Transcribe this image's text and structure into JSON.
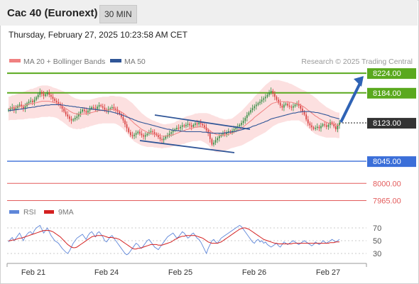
{
  "header": {
    "title": "Cac 40 (Euronext)",
    "interval": "30 MIN",
    "datetime": "Thursday, February 27, 2025 10:23:58 AM CET"
  },
  "legend": {
    "ma20_label": "MA 20 + Bollinger Bands",
    "ma50_label": "MA 50",
    "credit": "Research © 2025 Trading Central",
    "rsi_label": "RSI",
    "ma9_label": "9MA"
  },
  "colors": {
    "candle_up": "#2e8b3d",
    "candle_down": "#d63a3a",
    "bollinger_fill": "#fbdada",
    "ma20": "#f08080",
    "ma50": "#2f5597",
    "resistance": "#5aa91e",
    "support": "#3b6fd9",
    "target_red": "#e35c5c",
    "current": "#333333",
    "arrow": "#2f63b5",
    "rsi": "#5f87d9",
    "rsi_ma": "#d42020"
  },
  "chart_data": [
    {
      "type": "candlestick",
      "x_tick_labels": [
        "Feb 21",
        "Feb 24",
        "Feb 25",
        "Feb 26",
        "Feb 27"
      ],
      "ylim": [
        7960,
        8240
      ],
      "levels": [
        {
          "value": 8224.0,
          "label": "8224.00",
          "kind": "resistance"
        },
        {
          "value": 8184.0,
          "label": "8184.00",
          "kind": "resistance"
        },
        {
          "value": 8123.0,
          "label": "8123.00",
          "kind": "current"
        },
        {
          "value": 8045.0,
          "label": "8045.00",
          "kind": "support"
        },
        {
          "value": 8000.0,
          "label": "8000.00",
          "kind": "target"
        },
        {
          "value": 7965.0,
          "label": "7965.00",
          "kind": "target"
        }
      ],
      "close": [
        8150,
        8152,
        8155,
        8149,
        8153,
        8158,
        8160,
        8156,
        8152,
        8157,
        8163,
        8166,
        8168,
        8165,
        8170,
        8175,
        8180,
        8186,
        8182,
        8178,
        8181,
        8184,
        8180,
        8176,
        8172,
        8168,
        8165,
        8162,
        8158,
        8152,
        8146,
        8140,
        8136,
        8131,
        8128,
        8130,
        8133,
        8136,
        8142,
        8146,
        8150,
        8147,
        8144,
        8148,
        8152,
        8155,
        8153,
        8151,
        8156,
        8159,
        8157,
        8154,
        8150,
        8148,
        8151,
        8153,
        8155,
        8152,
        8150,
        8146,
        8141,
        8135,
        8128,
        8120,
        8112,
        8104,
        8098,
        8096,
        8099,
        8102,
        8105,
        8101,
        8098,
        8095,
        8098,
        8101,
        8104,
        8106,
        8104,
        8101,
        8098,
        8094,
        8090,
        8088,
        8091,
        8095,
        8098,
        8101,
        8104,
        8107,
        8110,
        8113,
        8112,
        8115,
        8118,
        8116,
        8119,
        8121,
        8118,
        8115,
        8119,
        8122,
        8120,
        8124,
        8121,
        8118,
        8114,
        8108,
        8102,
        8090,
        8079,
        8083,
        8088,
        8092,
        8096,
        8099,
        8102,
        8100,
        8104,
        8106,
        8103,
        8107,
        8110,
        8113,
        8116,
        8119,
        8123,
        8127,
        8133,
        8139,
        8144,
        8149,
        8153,
        8157,
        8160,
        8163,
        8166,
        8170,
        8173,
        8176,
        8180,
        8185,
        8188,
        8182,
        8176,
        8170,
        8164,
        8158,
        8154,
        8160,
        8162,
        8158,
        8156,
        8154,
        8157,
        8160,
        8162,
        8158,
        8152,
        8146,
        8140,
        8130,
        8122,
        8118,
        8114,
        8111,
        8113,
        8115,
        8112,
        8117,
        8120,
        8118,
        8115,
        8119,
        8124,
        8121,
        8116,
        8110,
        8118,
        8123
      ],
      "ma20": [
        8152,
        8153,
        8154,
        8154,
        8155,
        8156,
        8157,
        8157,
        8158,
        8159,
        8160,
        8161,
        8162,
        8162,
        8163,
        8164,
        8165,
        8166,
        8167,
        8167,
        8167,
        8167,
        8167,
        8166,
        8165,
        8164,
        8163,
        8161,
        8159,
        8157,
        8155,
        8152,
        8150,
        8147,
        8145,
        8143,
        8142,
        8141,
        8141,
        8140,
        8141,
        8141,
        8142,
        8142,
        8143,
        8144,
        8145,
        8146,
        8147,
        8148,
        8148,
        8149,
        8149,
        8149,
        8149,
        8150,
        8150,
        8150,
        8149,
        8148,
        8147,
        8145,
        8143,
        8140,
        8137,
        8133,
        8129,
        8126,
        8122,
        8119,
        8116,
        8113,
        8110,
        8108,
        8106,
        8104,
        8103,
        8102,
        8101,
        8100,
        8099,
        8098,
        8097,
        8096,
        8096,
        8096,
        8097,
        8097,
        8098,
        8099,
        8100,
        8102,
        8103,
        8105,
        8106,
        8107,
        8109,
        8110,
        8111,
        8112,
        8113,
        8114,
        8114,
        8115,
        8115,
        8114,
        8113,
        8112,
        8110,
        8107,
        8104,
        8102,
        8100,
        8099,
        8098,
        8098,
        8098,
        8098,
        8099,
        8100,
        8101,
        8102,
        8104,
        8106,
        8108,
        8110,
        8112,
        8115,
        8118,
        8121,
        8124,
        8127,
        8130,
        8134,
        8137,
        8140,
        8143,
        8146,
        8149,
        8152,
        8155,
        8158,
        8161,
        8163,
        8164,
        8165,
        8166,
        8166,
        8166,
        8166,
        8166,
        8166,
        8165,
        8165,
        8164,
        8163,
        8162,
        8161,
        8159,
        8157,
        8155,
        8152,
        8149,
        8146,
        8143,
        8140,
        8137,
        8135,
        8132,
        8130,
        8128,
        8126,
        8124,
        8123,
        8122,
        8121,
        8120,
        8119,
        8118,
        8118
      ],
      "ma50": [
        8148,
        8148,
        8149,
        8149,
        8150,
        8150,
        8151,
        8151,
        8152,
        8152,
        8153,
        8154,
        8154,
        8155,
        8155,
        8156,
        8157,
        8157,
        8158,
        8158,
        8159,
        8159,
        8159,
        8160,
        8160,
        8160,
        8160,
        8160,
        8160,
        8159,
        8159,
        8158,
        8158,
        8157,
        8157,
        8156,
        8156,
        8155,
        8155,
        8154,
        8154,
        8153,
        8153,
        8152,
        8152,
        8151,
        8151,
        8150,
        8150,
        8149,
        8149,
        8148,
        8148,
        8147,
        8146,
        8146,
        8145,
        8144,
        8143,
        8142,
        8141,
        8140,
        8138,
        8137,
        8135,
        8134,
        8132,
        8131,
        8129,
        8128,
        8126,
        8125,
        8124,
        8123,
        8122,
        8121,
        8120,
        8119,
        8118,
        8117,
        8116,
        8115,
        8114,
        8113,
        8112,
        8111,
        8110,
        8110,
        8109,
        8108,
        8108,
        8107,
        8107,
        8106,
        8106,
        8106,
        8105,
        8105,
        8105,
        8105,
        8105,
        8105,
        8105,
        8105,
        8105,
        8104,
        8104,
        8104,
        8103,
        8103,
        8102,
        8102,
        8102,
        8102,
        8102,
        8102,
        8102,
        8103,
        8103,
        8104,
        8104,
        8105,
        8105,
        8106,
        8107,
        8108,
        8109,
        8110,
        8111,
        8112,
        8113,
        8114,
        8116,
        8117,
        8118,
        8120,
        8121,
        8123,
        8124,
        8126,
        8127,
        8129,
        8131,
        8132,
        8133,
        8134,
        8135,
        8136,
        8137,
        8138,
        8139,
        8140,
        8141,
        8142,
        8143,
        8143,
        8144,
        8145,
        8145,
        8146,
        8146,
        8146,
        8146,
        8146,
        8145,
        8145,
        8144,
        8144,
        8143,
        8142,
        8141,
        8140,
        8139,
        8138,
        8136,
        8135,
        8134,
        8133,
        8132,
        8131
      ],
      "bollinger_width": [
        24,
        24,
        25,
        25,
        26,
        26,
        27,
        27,
        28,
        28,
        29,
        29,
        30,
        30,
        31,
        31,
        32,
        32,
        32,
        32,
        32,
        32,
        31,
        31,
        30,
        30,
        30,
        30,
        31,
        31,
        32,
        32,
        33,
        33,
        32,
        32,
        31,
        31,
        30,
        30,
        29,
        29,
        28,
        28,
        27,
        27,
        27,
        27,
        27,
        27,
        27,
        27,
        27,
        27,
        27,
        28,
        28,
        28,
        28,
        29,
        30,
        31,
        32,
        34,
        35,
        36,
        37,
        37,
        37,
        36,
        35,
        34,
        33,
        32,
        31,
        30,
        29,
        28,
        27,
        27,
        26,
        26,
        25,
        25,
        24,
        24,
        24,
        24,
        24,
        24,
        24,
        25,
        25,
        26,
        26,
        27,
        27,
        27,
        27,
        27,
        27,
        28,
        28,
        28,
        28,
        29,
        30,
        31,
        32,
        34,
        35,
        36,
        36,
        36,
        35,
        34,
        33,
        32,
        31,
        31,
        30,
        30,
        31,
        32,
        33,
        34,
        35,
        36,
        37,
        38,
        39,
        40,
        41,
        42,
        43,
        44,
        45,
        46,
        47,
        48,
        48,
        48,
        48,
        47,
        46,
        45,
        44,
        43,
        42,
        41,
        40,
        39,
        38,
        37,
        36,
        35,
        34,
        33,
        33,
        33,
        34,
        35,
        36,
        36,
        37,
        37,
        37,
        36,
        35,
        34,
        33,
        32,
        31,
        30,
        29,
        28,
        27,
        26,
        26,
        26
      ],
      "rsi": {
        "label": "RSI",
        "ma_label": "9MA",
        "y_ticks": [
          70,
          50,
          30
        ],
        "ylim": [
          20,
          80
        ],
        "values": [
          48,
          52,
          55,
          50,
          54,
          58,
          62,
          56,
          50,
          56,
          60,
          63,
          64,
          60,
          66,
          70,
          72,
          74,
          68,
          62,
          66,
          70,
          64,
          58,
          54,
          50,
          48,
          46,
          42,
          38,
          35,
          32,
          30,
          34,
          40,
          46,
          50,
          54,
          56,
          58,
          60,
          56,
          52,
          58,
          62,
          64,
          60,
          56,
          62,
          64,
          60,
          56,
          50,
          48,
          52,
          56,
          58,
          54,
          50,
          46,
          42,
          38,
          34,
          30,
          28,
          30,
          34,
          38,
          42,
          46,
          44,
          40,
          38,
          42,
          46,
          50,
          52,
          48,
          44,
          40,
          38,
          36,
          40,
          44,
          48,
          52,
          56,
          58,
          60,
          62,
          58,
          54,
          56,
          60,
          64,
          62,
          58,
          54,
          56,
          60,
          62,
          58,
          54,
          52,
          48,
          42,
          36,
          30,
          38,
          44,
          50,
          52,
          48,
          46,
          50,
          54,
          56,
          58,
          60,
          62,
          64,
          66,
          68,
          70,
          72,
          74,
          72,
          68,
          64,
          60,
          56,
          52,
          48,
          46,
          50,
          52,
          48,
          50,
          46,
          48,
          44,
          42,
          40,
          42,
          44,
          46,
          42,
          40,
          44,
          48,
          46,
          44,
          46,
          48,
          50,
          48,
          46,
          44,
          46,
          48,
          50,
          48,
          46,
          44,
          42,
          44,
          48,
          46,
          44,
          46,
          50,
          48,
          46,
          48,
          50,
          52,
          50,
          48,
          50,
          52
        ],
        "ma9": [
          50,
          50,
          51,
          51,
          52,
          53,
          54,
          54,
          55,
          56,
          57,
          58,
          59,
          60,
          61,
          62,
          63,
          64,
          65,
          66,
          66,
          66,
          66,
          65,
          64,
          62,
          60,
          58,
          56,
          53,
          50,
          47,
          44,
          42,
          40,
          39,
          39,
          40,
          42,
          44,
          46,
          48,
          50,
          52,
          54,
          56,
          57,
          57,
          58,
          58,
          58,
          58,
          57,
          56,
          55,
          55,
          55,
          54,
          54,
          53,
          52,
          50,
          48,
          46,
          44,
          42,
          40,
          38,
          37,
          37,
          38,
          38,
          39,
          40,
          41,
          42,
          43,
          44,
          44,
          44,
          44,
          43,
          43,
          43,
          44,
          45,
          46,
          47,
          48,
          50,
          52,
          53,
          55,
          56,
          57,
          57,
          58,
          58,
          58,
          58,
          58,
          58,
          57,
          56,
          55,
          54,
          52,
          50,
          48,
          47,
          46,
          46,
          46,
          46,
          47,
          48,
          50,
          52,
          54,
          56,
          58,
          60,
          62,
          64,
          66,
          68,
          69,
          70,
          70,
          69,
          68,
          66,
          64,
          62,
          60,
          58,
          56,
          54,
          52,
          51,
          50,
          49,
          48,
          47,
          46,
          46,
          45,
          45,
          45,
          45,
          45,
          45,
          45,
          45,
          46,
          46,
          46,
          46,
          46,
          46,
          46,
          46,
          46,
          46,
          46,
          46,
          46,
          46,
          46,
          46,
          46,
          46,
          46,
          46,
          47,
          47,
          47,
          48,
          48,
          48
        ]
      }
    }
  ]
}
